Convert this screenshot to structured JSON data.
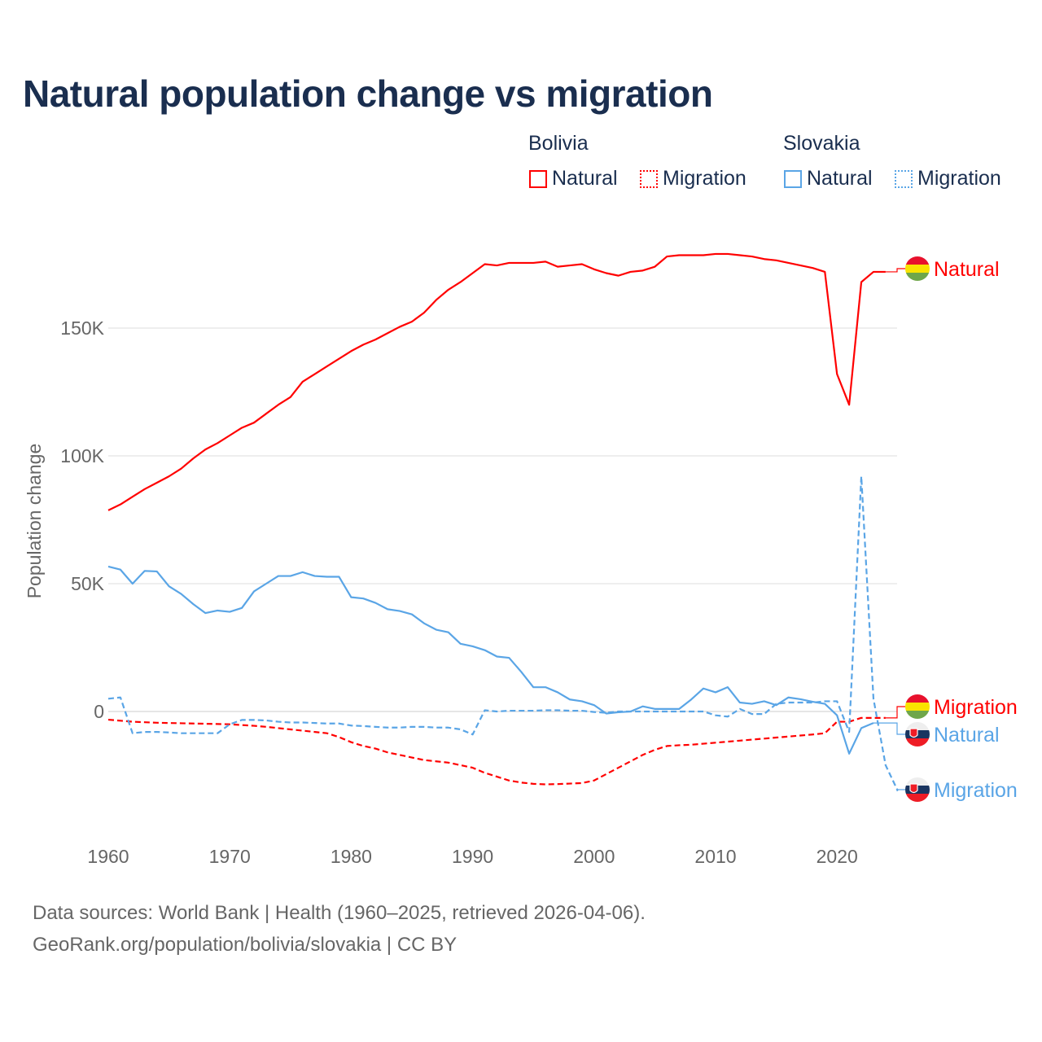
{
  "chart_data": {
    "type": "line",
    "title": "Natural population change vs migration",
    "xlabel": "",
    "ylabel": "Population change",
    "xlim": [
      1960,
      2025
    ],
    "ylim": [
      -45000,
      190000
    ],
    "x_ticks": [
      "1960",
      "1970",
      "1980",
      "1990",
      "2000",
      "2010",
      "2020"
    ],
    "y_ticks": [
      {
        "value": 0,
        "label": "0"
      },
      {
        "value": 50000,
        "label": "50K"
      },
      {
        "value": 100000,
        "label": "100K"
      },
      {
        "value": 150000,
        "label": "150K"
      }
    ],
    "grid": "horizontal",
    "legend": {
      "placement": "top-right",
      "groups": [
        {
          "name": "Bolivia",
          "entries": [
            "Natural",
            "Migration"
          ]
        },
        {
          "name": "Slovakia",
          "entries": [
            "Natural",
            "Migration"
          ]
        }
      ]
    },
    "series": [
      {
        "name": "Bolivia Natural",
        "country": "Bolivia",
        "kind": "Natural",
        "color": "#ff0000",
        "dash": false,
        "end_label": "Natural",
        "start_year": 1960,
        "values_k": [
          78.7,
          81,
          84,
          87,
          89.5,
          92,
          95,
          99,
          102.5,
          105,
          108,
          111,
          113,
          116.5,
          120,
          123,
          129,
          132,
          135,
          138,
          141,
          143.5,
          145.5,
          148,
          150.5,
          152.5,
          156,
          161,
          165,
          168,
          171.5,
          175,
          174.5,
          175.5,
          175.5,
          175.5,
          176,
          174,
          174.5,
          175,
          173,
          171.5,
          170.5,
          172,
          172.5,
          174,
          178,
          178.5,
          178.5,
          178.5,
          179,
          179,
          178.5,
          178,
          177,
          176.5,
          175.5,
          174.5,
          173.5,
          172,
          132,
          120,
          168,
          172,
          172
        ]
      },
      {
        "name": "Bolivia Migration",
        "country": "Bolivia",
        "kind": "Migration",
        "color": "#ff0000",
        "dash": true,
        "end_label": "Migration",
        "start_year": 1960,
        "values_k": [
          -3.2,
          -3.6,
          -4,
          -4.2,
          -4.4,
          -4.5,
          -4.6,
          -4.7,
          -4.8,
          -4.9,
          -5,
          -5.3,
          -5.6,
          -6,
          -6.5,
          -7,
          -7.5,
          -8,
          -8.5,
          -10,
          -12,
          -13.5,
          -14.5,
          -16,
          -17,
          -18,
          -19,
          -19.5,
          -20,
          -21,
          -22,
          -24,
          -25.5,
          -27,
          -27.8,
          -28.3,
          -28.5,
          -28.4,
          -28.2,
          -28,
          -27,
          -24.5,
          -22,
          -19.5,
          -17,
          -15,
          -13.5,
          -13.2,
          -13,
          -12.6,
          -12.2,
          -11.8,
          -11.4,
          -11,
          -10.6,
          -10.2,
          -9.8,
          -9.4,
          -9,
          -8.5,
          -4,
          -4,
          -2.5,
          -2.5,
          -2.5
        ]
      },
      {
        "name": "Slovakia Natural",
        "country": "Slovakia",
        "kind": "Natural",
        "color": "#5aa5e6",
        "dash": false,
        "end_label": "Natural",
        "start_year": 1960,
        "values_k": [
          56.7,
          55.5,
          50,
          55,
          54.8,
          49,
          46,
          42,
          38.5,
          39.5,
          39,
          40.5,
          47,
          50,
          53,
          53,
          54.5,
          53,
          52.7,
          52.7,
          44.7,
          44.2,
          42.5,
          40,
          39.3,
          38,
          34.5,
          32,
          31,
          26.5,
          25.5,
          24,
          21.5,
          21,
          15.5,
          9.5,
          9.5,
          7.5,
          4.7,
          4,
          2.5,
          -0.8,
          -0.3,
          0,
          2,
          1,
          1,
          1,
          4.7,
          9,
          7.5,
          9.5,
          3.5,
          3,
          4,
          2.5,
          5.5,
          4.8,
          3.8,
          3,
          -1.5,
          -16.5,
          -6.5,
          -4.5
        ]
      },
      {
        "name": "Slovakia Migration",
        "country": "Slovakia",
        "kind": "Migration",
        "color": "#5aa5e6",
        "dash": true,
        "end_label": "Migration",
        "start_year": 1960,
        "values_k": [
          5,
          5.5,
          -8.5,
          -8,
          -8,
          -8.2,
          -8.5,
          -8.5,
          -8.5,
          -8.5,
          -5,
          -3.3,
          -3.3,
          -3.5,
          -4,
          -4.3,
          -4.3,
          -4.5,
          -4.7,
          -4.7,
          -5.5,
          -5.7,
          -6,
          -6.3,
          -6.3,
          -6,
          -6,
          -6.3,
          -6.3,
          -7,
          -9,
          0.5,
          0,
          0.3,
          0.3,
          0.3,
          0.5,
          0.5,
          0.3,
          0.3,
          -0.2,
          -0.5,
          0,
          0,
          0,
          0,
          0,
          0,
          0,
          0,
          -1.5,
          -2,
          1,
          -1,
          -1,
          3,
          3.5,
          3.5,
          3.5,
          4,
          4,
          -8,
          92,
          5,
          -21,
          -31
        ]
      }
    ]
  },
  "legend_labels": {
    "bolivia": "Bolivia",
    "slovakia": "Slovakia",
    "natural": "Natural",
    "migration": "Migration"
  },
  "footer": {
    "line1": "Data sources: World Bank | Health (1960–2025, retrieved 2026-04-06).",
    "line2": "GeoRank.org/population/bolivia/slovakia | CC BY"
  }
}
